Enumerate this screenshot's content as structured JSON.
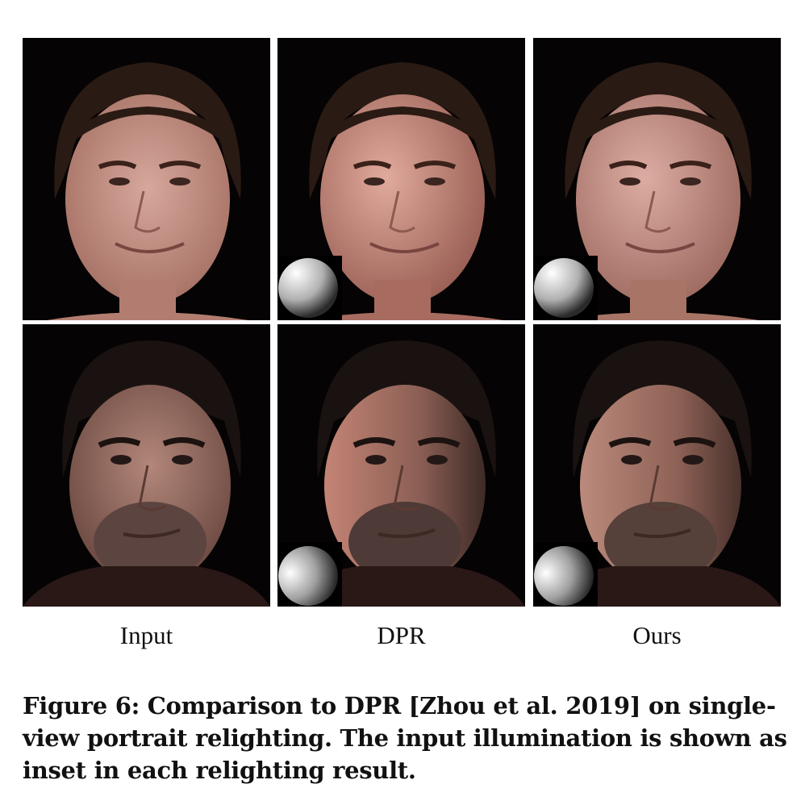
{
  "columns": [
    "Input",
    "DPR",
    "Ours"
  ],
  "rows": [
    {
      "subject": "woman-braids",
      "panels": [
        {
          "method": "Input",
          "inset": false
        },
        {
          "method": "DPR",
          "inset": true,
          "light": "left-top"
        },
        {
          "method": "Ours",
          "inset": true,
          "light": "left-top"
        }
      ]
    },
    {
      "subject": "man-short-hair",
      "panels": [
        {
          "method": "Input",
          "inset": false
        },
        {
          "method": "DPR",
          "inset": true,
          "light": "left"
        },
        {
          "method": "Ours",
          "inset": true,
          "light": "left"
        }
      ]
    }
  ],
  "caption": "Figure 6: Comparison to DPR [Zhou et al. 2019] on single-view portrait relighting. The input illumination is shown as inset in each relighting result.",
  "colors": {
    "background": "#050303",
    "skin_woman": "#c9958a",
    "skin_man": "#a3766a",
    "hair": "#2a1a14"
  }
}
